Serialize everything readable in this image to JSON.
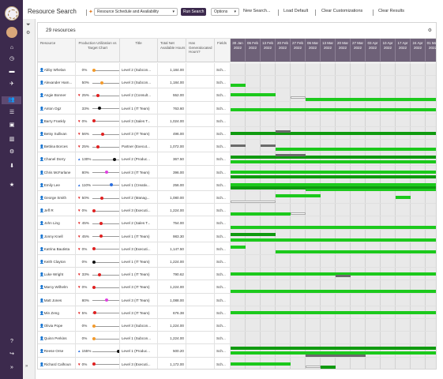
{
  "toolbar": {
    "title": "Resource Search",
    "view_select": "Resource Schedule and Availability",
    "run_label": "Run Search",
    "options_label": "Options",
    "new_search_label": "New Search...",
    "load_default_label": "Load Default",
    "clear_custom_label": "Clear Customizations",
    "clear_results_label": "Clear Results"
  },
  "panel": {
    "count_label": "29 resources"
  },
  "columns": {
    "resource": "Resource",
    "utilization": "Production Utilization vs Target Chart",
    "title": "Title",
    "net_hours": "Total Net Available Hours",
    "has_gen": "Has Generalocated Hours?",
    "fields": "Fields"
  },
  "weeks": [
    "30 Jan 2022",
    "06 Feb 2022",
    "13 Feb 2022",
    "20 Feb 2022",
    "27 Feb 2022",
    "06 Mar 2022",
    "13 Mar 2022",
    "20 Mar 2022",
    "27 Mar 2022",
    "03 Apr 2022",
    "10 Apr 2022",
    "17 Apr 2022",
    "24 Apr 2022",
    "01 May 2022"
  ],
  "colors": {
    "nav": "#3c2a4d",
    "bar_green": "#1cc91c",
    "bar_dark": "#0f9a0f",
    "dot_orange": "#f39a2b",
    "dot_red": "#e02020",
    "dot_black": "#111111",
    "dot_magenta": "#e040e0",
    "dot_blue": "#2a6ee0"
  },
  "rows": [
    {
      "name": "Abby Whelan",
      "trend": "",
      "pct": "0%",
      "util": 0.0,
      "dot": "orange",
      "title": "Level 2 (Subcon...",
      "hours": "1,184.00",
      "fields": "Sch..."
    },
    {
      "name": "Alexander Ham...",
      "trend": "",
      "pct": "50%",
      "util": 0.5,
      "dot": "orange",
      "title": "Level 3 (Subcon...",
      "hours": "1,184.00",
      "fields": "Sch..."
    },
    {
      "name": "Angie Bonner",
      "trend": "down",
      "pct": "25%",
      "util": 0.25,
      "dot": "red",
      "title": "Level 2 (Consult...",
      "hours": "552.00",
      "fields": "Sch..."
    },
    {
      "name": "Anton Ogz",
      "trend": "",
      "pct": "33%",
      "util": 0.33,
      "dot": "black",
      "title": "Level 1 (IT Team)",
      "hours": "763.60",
      "fields": "Sch..."
    },
    {
      "name": "Barry Frankly",
      "trend": "down",
      "pct": "0%",
      "util": 0.0,
      "dot": "red",
      "title": "Level 3 (Sales T...",
      "hours": "1,024.00",
      "fields": "Sch..."
    },
    {
      "name": "Betsy Sullivan",
      "trend": "down",
      "pct": "56%",
      "util": 0.56,
      "dot": "red",
      "title": "Level 3 (IT Team)",
      "hours": "496.00",
      "fields": "Sch..."
    },
    {
      "name": "Bettina Borces",
      "trend": "down",
      "pct": "25%",
      "util": 0.25,
      "dot": "red",
      "title": "Partner (Execut...",
      "hours": "1,072.00",
      "fields": "Sch..."
    },
    {
      "name": "Chanel Dorry",
      "trend": "up",
      "pct": "130%",
      "util": 1.3,
      "dot": "black",
      "title": "Level 2 (Produc...",
      "hours": "367.50",
      "fields": "Sch..."
    },
    {
      "name": "Chris McFarlane",
      "trend": "",
      "pct": "80%",
      "util": 0.8,
      "dot": "magenta",
      "title": "Level 3 (IT Team)",
      "hours": "396.00",
      "fields": "Sch..."
    },
    {
      "name": "Emily Lee",
      "trend": "up",
      "pct": "110%",
      "util": 1.1,
      "dot": "blue",
      "title": "Level 1 (Creativ...",
      "hours": "256.00",
      "fields": "Sch..."
    },
    {
      "name": "George Smith",
      "trend": "down",
      "pct": "50%",
      "util": 0.5,
      "dot": "red",
      "title": "Level 2 (Manag...",
      "hours": "1,080.00",
      "fields": "Sch..."
    },
    {
      "name": "Jeff R",
      "trend": "down",
      "pct": "0%",
      "util": 0.0,
      "dot": "red",
      "title": "Level 3 (Executi...",
      "hours": "1,224.00",
      "fields": "Sch..."
    },
    {
      "name": "John Ling",
      "trend": "down",
      "pct": "45%",
      "util": 0.45,
      "dot": "red",
      "title": "Level 2 (Sales T...",
      "hours": "754.00",
      "fields": "Sch..."
    },
    {
      "name": "Jonny Knell",
      "trend": "down",
      "pct": "45%",
      "util": 0.45,
      "dot": "red",
      "title": "Level 1 (IT Team)",
      "hours": "983.30",
      "fields": "Sch..."
    },
    {
      "name": "Katrina Bautista",
      "trend": "down",
      "pct": "0%",
      "util": 0.0,
      "dot": "red",
      "title": "Level 3 (Executi...",
      "hours": "1,147.50",
      "fields": "Sch..."
    },
    {
      "name": "Keith Clayton",
      "trend": "",
      "pct": "0%",
      "util": 0.0,
      "dot": "black",
      "title": "Level 1 (IT Team)",
      "hours": "1,224.00",
      "fields": "Sch..."
    },
    {
      "name": "Luke Wright",
      "trend": "down",
      "pct": "33%",
      "util": 0.33,
      "dot": "red",
      "title": "Level 1 (IT Team)",
      "hours": "790.62",
      "fields": "Sch..."
    },
    {
      "name": "Marcy Wilhelm",
      "trend": "down",
      "pct": "0%",
      "util": 0.0,
      "dot": "red",
      "title": "Level 3 (IT Team)",
      "hours": "1,224.00",
      "fields": "Sch..."
    },
    {
      "name": "Matt Jones",
      "trend": "",
      "pct": "80%",
      "util": 0.8,
      "dot": "magenta",
      "title": "Level 3 (IT Team)",
      "hours": "1,088.00",
      "fields": "Sch..."
    },
    {
      "name": "Min Zeng",
      "trend": "down",
      "pct": "5%",
      "util": 0.05,
      "dot": "red",
      "title": "Level 3 (IT Team)",
      "hours": "676.38",
      "fields": "Sch..."
    },
    {
      "name": "Olivia Pope",
      "trend": "",
      "pct": "0%",
      "util": 0.0,
      "dot": "orange",
      "title": "Level 3 (Subcon...",
      "hours": "1,224.00",
      "fields": "Sch..."
    },
    {
      "name": "Quinn Perkins",
      "trend": "",
      "pct": "0%",
      "util": 0.0,
      "dot": "orange",
      "title": "Level 1 (Subcon...",
      "hours": "1,224.00",
      "fields": "Sch..."
    },
    {
      "name": "Reese Orse",
      "trend": "up",
      "pct": "155%",
      "util": 1.55,
      "dot": "black",
      "title": "Level 1 (Produc...",
      "hours": "500.20",
      "fields": "Sch..."
    },
    {
      "name": "Richard Calhoun",
      "trend": "down",
      "pct": "0%",
      "util": 0.0,
      "dot": "red",
      "title": "Level 3 (Executi...",
      "hours": "1,172.00",
      "fields": "Sch..."
    }
  ]
}
